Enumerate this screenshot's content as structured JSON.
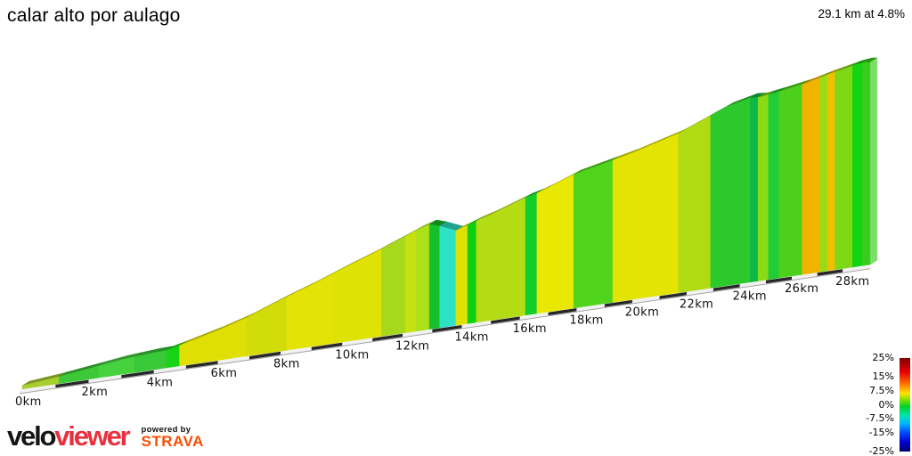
{
  "header": {
    "title": "calar alto por aulago",
    "summary": "29.1 km at 4.8%"
  },
  "chart_data": {
    "type": "area",
    "title": "calar alto por aulago",
    "total_km": 29.1,
    "avg_gradient_pct": 4.8,
    "x_ticks": [
      {
        "km": 0,
        "label": "0km"
      },
      {
        "km": 2,
        "label": "2km"
      },
      {
        "km": 4,
        "label": "4km"
      },
      {
        "km": 6,
        "label": "6km"
      },
      {
        "km": 8,
        "label": "8km"
      },
      {
        "km": 10,
        "label": "10km"
      },
      {
        "km": 12,
        "label": "12km"
      },
      {
        "km": 14,
        "label": "14km"
      },
      {
        "km": 16,
        "label": "16km"
      },
      {
        "km": 18,
        "label": "18km"
      },
      {
        "km": 20,
        "label": "20km"
      },
      {
        "km": 22,
        "label": "22km"
      },
      {
        "km": 24,
        "label": "24km"
      },
      {
        "km": 26,
        "label": "26km"
      },
      {
        "km": 28,
        "label": "28km"
      }
    ],
    "profile_points": [
      [
        0,
        433
      ],
      [
        1,
        424
      ],
      [
        2,
        414
      ],
      [
        3,
        404
      ],
      [
        4,
        396
      ],
      [
        4.4,
        393.5
      ],
      [
        4.8,
        388
      ],
      [
        6,
        371
      ],
      [
        6.9,
        357
      ],
      [
        8,
        337
      ],
      [
        9,
        320
      ],
      [
        10,
        302
      ],
      [
        11,
        285
      ],
      [
        12,
        267
      ],
      [
        12.5,
        258
      ],
      [
        12.9,
        252
      ],
      [
        13.25,
        254
      ],
      [
        13.8,
        259
      ],
      [
        14.2,
        253
      ],
      [
        14.5,
        248
      ],
      [
        15,
        241
      ],
      [
        16.2,
        222
      ],
      [
        16.6,
        217
      ],
      [
        17,
        211
      ],
      [
        17.9,
        196
      ],
      [
        19.3,
        180
      ],
      [
        20,
        172
      ],
      [
        21,
        159
      ],
      [
        21.7,
        150
      ],
      [
        22.9,
        130
      ],
      [
        23.5,
        120
      ],
      [
        24.4,
        110
      ],
      [
        24.8,
        109
      ],
      [
        25.5,
        103
      ],
      [
        26.6,
        93
      ],
      [
        27.3,
        85
      ],
      [
        27.8,
        80
      ],
      [
        28.5,
        73
      ],
      [
        28.9,
        70
      ],
      [
        29.1,
        70
      ]
    ],
    "segments": [
      {
        "from_km": 0.0,
        "to_km": 1.1,
        "color": "#a6ce2e"
      },
      {
        "from_km": 1.1,
        "to_km": 2.3,
        "color": "#3cc837"
      },
      {
        "from_km": 2.3,
        "to_km": 3.4,
        "color": "#46d23e"
      },
      {
        "from_km": 3.4,
        "to_km": 4.4,
        "color": "#38c838"
      },
      {
        "from_km": 4.4,
        "to_km": 4.8,
        "color": "#17d417"
      },
      {
        "from_km": 4.8,
        "to_km": 6.9,
        "color": "#dfdf04"
      },
      {
        "from_km": 6.9,
        "to_km": 8.2,
        "color": "#d2dc08"
      },
      {
        "from_km": 8.2,
        "to_km": 9.7,
        "color": "#e3e305"
      },
      {
        "from_km": 9.7,
        "to_km": 11.3,
        "color": "#dfe303"
      },
      {
        "from_km": 11.3,
        "to_km": 12.1,
        "color": "#a8d81c"
      },
      {
        "from_km": 12.1,
        "to_km": 12.45,
        "color": "#c6e010"
      },
      {
        "from_km": 12.45,
        "to_km": 12.9,
        "color": "#ace01a"
      },
      {
        "from_km": 12.9,
        "to_km": 13.25,
        "color": "#16c02c"
      },
      {
        "from_km": 13.25,
        "to_km": 13.8,
        "color": "#2ee2c6"
      },
      {
        "from_km": 13.8,
        "to_km": 14.2,
        "color": "#e0e005"
      },
      {
        "from_km": 14.2,
        "to_km": 14.5,
        "color": "#0ed00e"
      },
      {
        "from_km": 14.5,
        "to_km": 16.2,
        "color": "#b4dc14"
      },
      {
        "from_km": 16.2,
        "to_km": 16.6,
        "color": "#12ce2a"
      },
      {
        "from_km": 16.6,
        "to_km": 17.9,
        "color": "#e8e802"
      },
      {
        "from_km": 17.9,
        "to_km": 19.3,
        "color": "#50d41c"
      },
      {
        "from_km": 19.3,
        "to_km": 21.7,
        "color": "#e4e404"
      },
      {
        "from_km": 21.7,
        "to_km": 22.9,
        "color": "#b0da12"
      },
      {
        "from_km": 22.9,
        "to_km": 24.4,
        "color": "#2cc82c"
      },
      {
        "from_km": 24.4,
        "to_km": 24.7,
        "color": "#0eb846"
      },
      {
        "from_km": 24.7,
        "to_km": 25.1,
        "color": "#8ada16"
      },
      {
        "from_km": 25.1,
        "to_km": 25.5,
        "color": "#20cc38"
      },
      {
        "from_km": 25.5,
        "to_km": 26.4,
        "color": "#4cd01c"
      },
      {
        "from_km": 26.4,
        "to_km": 27.1,
        "color": "#f0b400"
      },
      {
        "from_km": 27.1,
        "to_km": 27.4,
        "color": "#98dc16"
      },
      {
        "from_km": 27.4,
        "to_km": 27.7,
        "color": "#f0c000"
      },
      {
        "from_km": 27.7,
        "to_km": 28.4,
        "color": "#7ed816"
      },
      {
        "from_km": 28.4,
        "to_km": 28.8,
        "color": "#12d412"
      },
      {
        "from_km": 28.8,
        "to_km": 29.1,
        "color": "#38cc1c"
      }
    ],
    "legend": {
      "position": "bottom-right",
      "entries": [
        {
          "value": 25,
          "label": "25%"
        },
        {
          "value": 15,
          "label": "15%"
        },
        {
          "value": 7.5,
          "label": "7.5%"
        },
        {
          "value": 0,
          "label": "0%"
        },
        {
          "value": -7.5,
          "label": "-7.5%"
        },
        {
          "value": -15,
          "label": "-15%"
        },
        {
          "value": -25,
          "label": "-25%"
        }
      ],
      "gradient": [
        "#7f0000",
        "#e80000",
        "#ff6a00",
        "#ffe400",
        "#7ae000",
        "#00d22c",
        "#00e2b4",
        "#00b4ff",
        "#0048ff",
        "#0000d2",
        "#00006e"
      ],
      "gradient_stops_pct": [
        0,
        15,
        27,
        38,
        45,
        52,
        62,
        70,
        80,
        90,
        100
      ]
    },
    "axis": {
      "dash_dark": "#262626",
      "dash_light": "#f1f1f1",
      "base_edge": "#9a9a9a"
    }
  },
  "footer": {
    "brand_velo": "velo",
    "brand_viewer": "viewer",
    "powered_by": "powered by",
    "strava": "STRAVA",
    "brand_red": "#e8303e",
    "strava_orange": "#fc4c02"
  }
}
